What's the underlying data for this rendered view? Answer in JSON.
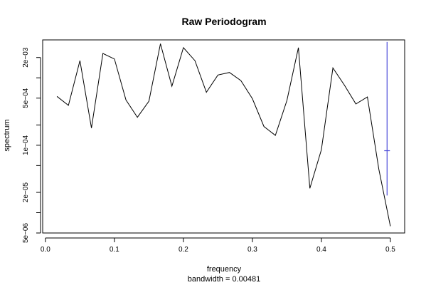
{
  "chart_data": {
    "type": "line",
    "title": "Raw Periodogram",
    "xlabel": "frequency",
    "ylabel": "spectrum",
    "subtitle": "bandwidth = 0.00481",
    "x_ticks": [
      0.0,
      0.1,
      0.2,
      0.3,
      0.4,
      0.5
    ],
    "x_tick_labels": [
      "0.0",
      "0.1",
      "0.2",
      "0.3",
      "0.4",
      "0.5"
    ],
    "y_scale": "log",
    "y_ticks": [
      5e-06,
      2e-05,
      0.0001,
      0.0005,
      0.002
    ],
    "y_tick_labels": [
      "5e−06",
      "2e−05",
      "1e−04",
      "5e−04",
      "2e−03"
    ],
    "y_minor_ticks": [
      1e-05,
      5e-05,
      0.0002,
      0.001
    ],
    "xlim": [
      -0.004,
      0.5207
    ],
    "ylim": [
      5e-06,
      0.00365
    ],
    "grid": false,
    "series": [
      {
        "color": "#000000",
        "x": [
          0.0167,
          0.0333,
          0.05,
          0.0667,
          0.0833,
          0.1,
          0.1167,
          0.1333,
          0.15,
          0.1667,
          0.1833,
          0.2,
          0.2167,
          0.2333,
          0.25,
          0.2667,
          0.2833,
          0.3,
          0.3167,
          0.3333,
          0.35,
          0.3667,
          0.3833,
          0.4,
          0.4167,
          0.4333,
          0.45,
          0.4667,
          0.4833,
          0.5
        ],
        "values": [
          0.00053,
          0.00039,
          0.0018,
          0.00018,
          0.0023,
          0.0019,
          0.00047,
          0.00026,
          0.00045,
          0.0032,
          0.00075,
          0.0028,
          0.0018,
          0.00061,
          0.0011,
          0.0012,
          0.00091,
          0.00049,
          0.00019,
          0.00014,
          0.00046,
          0.0028,
          2.3e-05,
          8.6e-05,
          0.0014,
          0.00078,
          0.00041,
          0.00052,
          4.4e-05,
          6.3e-06
        ]
      }
    ],
    "confidence_bar": {
      "color": "#4a4ad8",
      "x": 0.4952,
      "lower": 1.8e-05,
      "center": 8.3e-05,
      "upper": 0.0034
    }
  }
}
